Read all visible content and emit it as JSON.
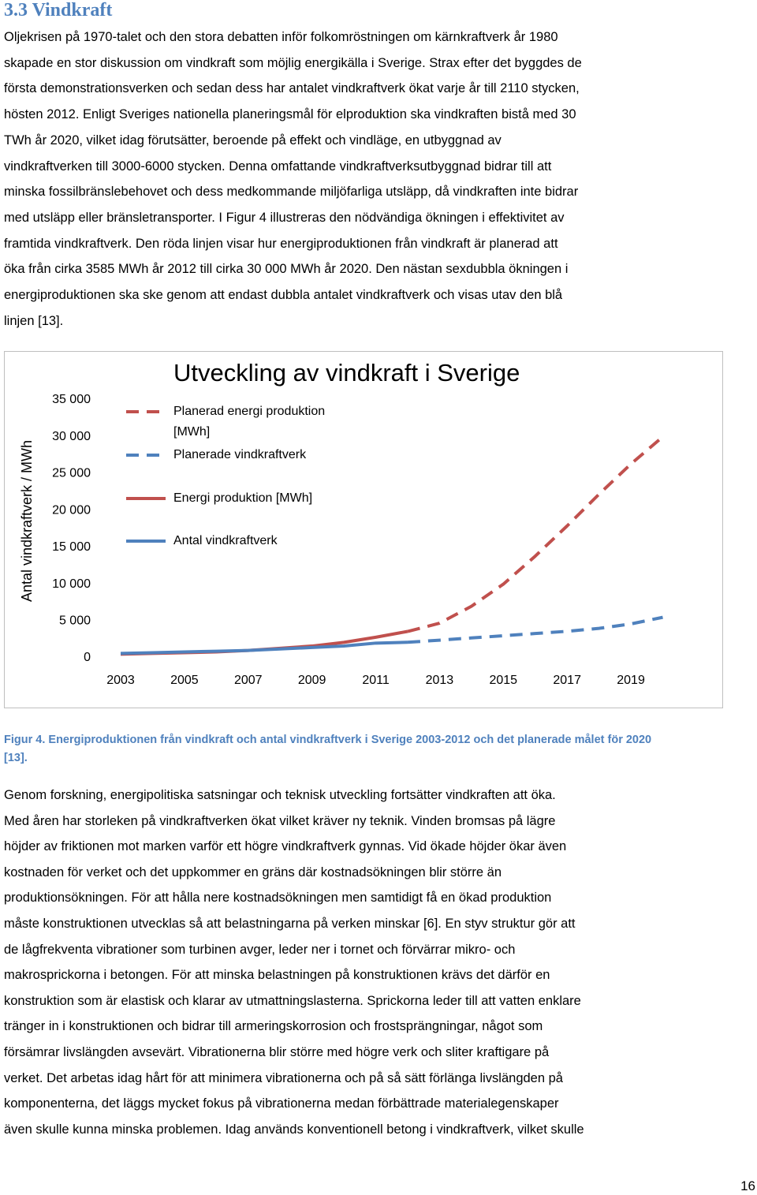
{
  "heading": "3.3 Vindkraft",
  "body_1": [
    "Oljekrisen på 1970-talet och den stora debatten inför folkomröstningen om kärnkraftverk år 1980",
    "skapade en stor diskussion om vindkraft som möjlig energikälla i Sverige. Strax efter det byggdes de",
    "första demonstrationsverken och sedan dess har antalet vindkraftverk ökat varje år till 2110 stycken,",
    "hösten 2012. Enligt Sveriges nationella planeringsmål för elproduktion ska vindkraften bistå med 30",
    "TWh år 2020, vilket idag förutsätter, beroende på effekt och vindläge, en utbyggnad av",
    "vindkraftverken till 3000-6000 stycken. Denna omfattande vindkraftverksutbyggnad bidrar till att",
    "minska fossilbränslebehovet och dess medkommande miljöfarliga utsläpp, då vindkraften inte bidrar",
    "med utsläpp eller bränsletransporter. I Figur 4 illustreras den nödvändiga ökningen i effektivitet av",
    "framtida vindkraftverk. Den röda linjen visar hur energiproduktionen från vindkraft är planerad att",
    "öka från cirka 3585 MWh år 2012 till cirka 30 000 MWh år 2020. Den nästan sexdubbla ökningen i",
    "energiproduktionen ska ske genom att endast dubbla antalet vindkraftverk och visas utav den blå",
    "linjen [13]."
  ],
  "chart_data": {
    "type": "line",
    "title": "Utveckling av vindkraft i Sverige",
    "y_label": "Antal vindkraftverk / MWh",
    "xlim": [
      2003,
      2020
    ],
    "xticks": [
      2003,
      2005,
      2007,
      2009,
      2011,
      2013,
      2015,
      2017,
      2019
    ],
    "ylim": [
      0,
      35000
    ],
    "yticks": [
      0,
      {
        "value": 5000,
        "label": "5 000"
      },
      {
        "value": 10000,
        "label": "10 000"
      },
      {
        "value": 15000,
        "label": "15 000"
      },
      {
        "value": 20000,
        "label": "20 000"
      },
      {
        "value": 25000,
        "label": "25 000"
      },
      {
        "value": 30000,
        "label": "30 000"
      },
      {
        "value": 35000,
        "label": "35 000"
      }
    ],
    "grid": false,
    "series": [
      {
        "name": "Planerad energi produktion [MWh]",
        "color": "#c0504d",
        "dashed": true,
        "x": [
          2012,
          2013,
          2014,
          2015,
          2016,
          2017,
          2018,
          2019,
          2020
        ],
        "values": [
          3585,
          4700,
          7000,
          10000,
          13800,
          17900,
          22200,
          26300,
          30000
        ]
      },
      {
        "name": "Planerade vindkraftverk",
        "color": "#4f81bd",
        "dashed": true,
        "x": [
          2012,
          2013,
          2014,
          2015,
          2016,
          2017,
          2018,
          2019,
          2020
        ],
        "values": [
          2110,
          2400,
          2700,
          3000,
          3300,
          3600,
          4000,
          4600,
          5500
        ]
      },
      {
        "name": "Energi produktion [MWh]",
        "color": "#c0504d",
        "dashed": false,
        "x": [
          2003,
          2004,
          2005,
          2006,
          2007,
          2008,
          2009,
          2010,
          2011,
          2012
        ],
        "values": [
          500,
          600,
          700,
          800,
          1000,
          1300,
          1600,
          2100,
          2800,
          3585
        ]
      },
      {
        "name": "Antal vindkraftverk",
        "color": "#4f81bd",
        "dashed": false,
        "x": [
          2003,
          2004,
          2005,
          2006,
          2007,
          2008,
          2009,
          2010,
          2011,
          2012
        ],
        "values": [
          600,
          700,
          800,
          900,
          1000,
          1200,
          1400,
          1600,
          2000,
          2110
        ]
      }
    ]
  },
  "caption": [
    "Figur 4. Energiproduktionen från vindkraft och antal vindkraftverk i Sverige 2003-2012 och det planerade målet för 2020",
    "[13]."
  ],
  "body_2": [
    "Genom forskning, energipolitiska satsningar och teknisk utveckling fortsätter vindkraften att öka.",
    "Med åren har storleken på vindkraftverken ökat vilket kräver ny teknik. Vinden bromsas på lägre",
    "höjder av friktionen mot marken varför ett högre vindkraftverk gynnas. Vid ökade höjder ökar även",
    "kostnaden för verket och det uppkommer en gräns där kostnadsökningen blir större än",
    "produktionsökningen. För att hålla nere kostnadsökningen men samtidigt få en ökad produktion",
    "måste konstruktionen utvecklas så att belastningarna på verken minskar [6]. En styv struktur gör att",
    "de lågfrekventa vibrationer som turbinen avger, leder ner i tornet och förvärrar mikro- och",
    "makrosprickorna i betongen. För att minska belastningen på konstruktionen krävs det därför en",
    "konstruktion som är elastisk och klarar av utmattningslasterna. Sprickorna leder till att vatten enklare",
    "tränger in i konstruktionen och bidrar till armeringskorrosion och frostsprängningar, något som",
    "försämrar livslängden avsevärt. Vibrationerna blir större med högre verk och sliter kraftigare på",
    "verket. Det arbetas idag hårt för att minimera vibrationerna och på så sätt förlänga livslängden på",
    "komponenterna, det läggs mycket fokus på vibrationerna medan förbättrade materialegenskaper",
    "även skulle kunna minska problemen. Idag används konventionell betong i vindkraftverk, vilket skulle"
  ],
  "page_number": "16"
}
